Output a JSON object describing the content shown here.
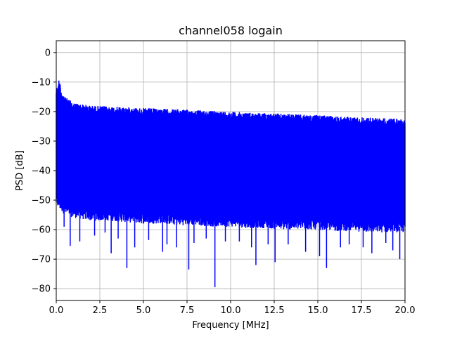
{
  "chart_data": {
    "type": "line",
    "title": "channel058 logain",
    "xlabel": "Frequency [MHz]",
    "ylabel": "PSD [dB]",
    "xlim": [
      0.0,
      20.0
    ],
    "ylim": [
      -84,
      4
    ],
    "xticks": [
      0.0,
      2.5,
      5.0,
      7.5,
      10.0,
      12.5,
      15.0,
      17.5,
      20.0
    ],
    "xtick_labels": [
      "0.0",
      "2.5",
      "5.0",
      "7.5",
      "10.0",
      "12.5",
      "15.0",
      "17.5",
      "20.0"
    ],
    "yticks": [
      0,
      -10,
      -20,
      -30,
      -40,
      -50,
      -60,
      -70,
      -80
    ],
    "ytick_labels": [
      "0",
      "−10",
      "−20",
      "−30",
      "−40",
      "−50",
      "−60",
      "−70",
      "−80"
    ],
    "grid": true,
    "series": [
      {
        "color": "#0000ff",
        "envelope_upper": {
          "x": [
            0.0,
            0.1,
            0.2,
            0.3,
            0.5,
            1.0,
            1.5,
            2.0,
            3.0,
            4.0,
            5.0,
            6.0,
            7.0,
            8.0,
            9.0,
            10.0,
            11.0,
            12.0,
            13.0,
            14.0,
            15.0,
            16.0,
            17.0,
            18.0,
            19.0,
            20.0
          ],
          "y": [
            -12,
            -11,
            -9.5,
            -13,
            -15,
            -17,
            -17.5,
            -18,
            -18.2,
            -18.5,
            -18.8,
            -19,
            -19.2,
            -19.5,
            -19.8,
            -20,
            -20.3,
            -20.5,
            -20.7,
            -21,
            -21.2,
            -21.5,
            -21.8,
            -22,
            -22.3,
            -22.5
          ]
        },
        "envelope_lower": {
          "x": [
            0.0,
            0.5,
            1.0,
            2.0,
            3.0,
            4.0,
            5.0,
            6.0,
            7.0,
            8.0,
            9.0,
            10.0,
            11.0,
            12.0,
            13.0,
            14.0,
            15.0,
            16.0,
            17.0,
            18.0,
            19.0,
            20.0
          ],
          "y": [
            -50,
            -53,
            -54,
            -55,
            -55,
            -55.5,
            -56,
            -56,
            -56.5,
            -56.5,
            -57,
            -57,
            -57.5,
            -57.5,
            -58,
            -58,
            -58,
            -58.5,
            -58.5,
            -59,
            -59,
            -59
          ]
        },
        "dips": {
          "x": [
            0.45,
            0.8,
            1.35,
            2.2,
            2.8,
            3.15,
            3.55,
            4.05,
            4.5,
            5.3,
            6.1,
            6.35,
            6.9,
            7.6,
            7.9,
            8.6,
            9.1,
            9.7,
            10.5,
            11.2,
            11.45,
            12.15,
            12.55,
            13.3,
            14.3,
            15.1,
            15.5,
            16.3,
            16.8,
            17.6,
            18.1,
            18.9,
            19.3,
            19.7
          ],
          "y": [
            -59,
            -65.5,
            -64,
            -62,
            -61,
            -68,
            -63,
            -73,
            -66,
            -63.5,
            -67.5,
            -65,
            -66,
            -73.5,
            -64.5,
            -63,
            -79.5,
            -64,
            -64,
            -66,
            -72,
            -65,
            -71,
            -65,
            -67.5,
            -69,
            -73,
            -66,
            -65,
            -66,
            -68,
            -64.5,
            -67,
            -70
          ]
        }
      }
    ]
  }
}
